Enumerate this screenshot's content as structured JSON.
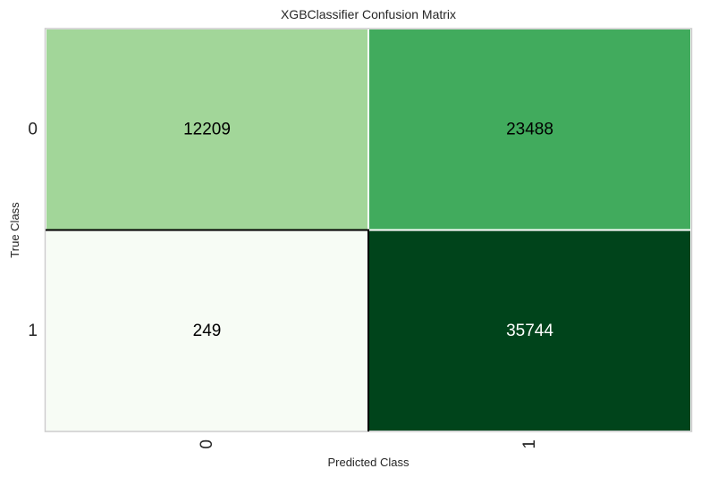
{
  "chart_data": {
    "type": "heatmap",
    "title": "XGBClassifier Confusion Matrix",
    "xlabel": "Predicted Class",
    "ylabel": "True Class",
    "x_categories": [
      "0",
      "1"
    ],
    "y_categories": [
      "0",
      "1"
    ],
    "values": [
      [
        12209,
        23488
      ],
      [
        249,
        35744
      ]
    ],
    "colormap": "Greens",
    "cell_colors": [
      [
        "#a2d699",
        "#41ab5d"
      ],
      [
        "#f7fcf5",
        "#00441b"
      ]
    ],
    "text_colors": [
      [
        "#000000",
        "#000000"
      ],
      [
        "#000000",
        "#ffffff"
      ]
    ],
    "cell_border_color": "#ffffff",
    "highlight_border_color": "#000000",
    "frame_color": "#cccccc",
    "grid": false,
    "legend": "none"
  }
}
